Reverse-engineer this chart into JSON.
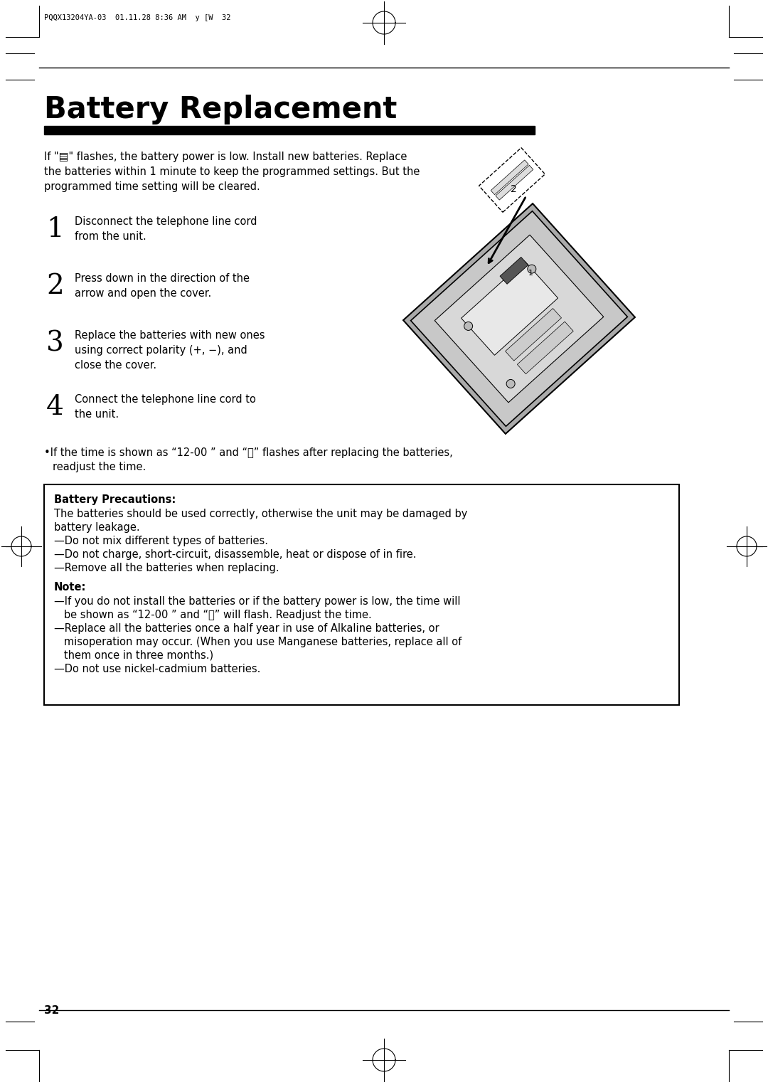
{
  "page_bg": "#ffffff",
  "header_text": "PQQX13204YA-03  01.11.28 8:36 AM  y [W  32",
  "title": "Battery Replacement",
  "intro_lines": [
    "If \"▤\" flashes, the battery power is low. Install new batteries. Replace",
    "the batteries within 1 minute to keep the programmed settings. But the",
    "programmed time setting will be cleared."
  ],
  "step1_num": "1",
  "step1_text": "Disconnect the telephone line cord\nfrom the unit.",
  "step2_num": "2",
  "step2_text": "Press down in the direction of the\narrow and open the cover.",
  "step3_num": "3",
  "step3_text": "Replace the batteries with new ones\nusing correct polarity (+, −), and\nclose the cover.",
  "step4_num": "4",
  "step4_text": "Connect the telephone line cord to\nthe unit.",
  "bullet_line1": "•If the time is shown as “12-00 ” and “ⓣ” flashes after replacing the batteries,",
  "bullet_line2": "  readjust the time.",
  "prec_title": "Battery Precautions:",
  "prec_lines": [
    "The batteries should be used correctly, otherwise the unit may be damaged by",
    "battery leakage.",
    "—Do not mix different types of batteries.",
    "—Do not charge, short-circuit, disassemble, heat or dispose of in fire.",
    "—Remove all the batteries when replacing."
  ],
  "note_title": "Note:",
  "note_lines": [
    "—If you do not install the batteries or if the battery power is low, the time will",
    "   be shown as “12-00 ” and “ⓣ” will flash. Readjust the time.",
    "—Replace all the batteries once a half year in use of Alkaline batteries, or",
    "   misoperation may occur. (When you use Manganese batteries, replace all of",
    "   them once in three months.)",
    "—Do not use nickel-cadmium batteries."
  ],
  "page_number": "32"
}
